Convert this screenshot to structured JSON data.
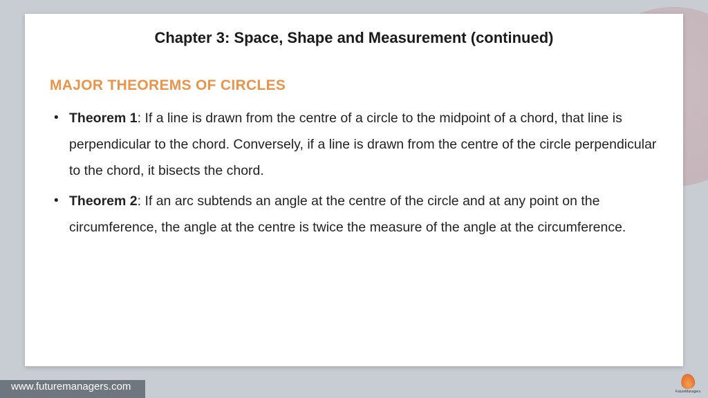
{
  "colors": {
    "page_bg": "#c8cdd3",
    "card_bg": "#ffffff",
    "title_text": "#1a1a1a",
    "heading_text": "#e8944a",
    "body_text": "#222222",
    "footer_bar": "#5e6770",
    "footer_text": "#ffffff",
    "bg_circle": "#b94e4e"
  },
  "typography": {
    "title_fontsize": 22,
    "heading_fontsize": 21,
    "body_fontsize": 19.5,
    "body_lineheight": 1.95,
    "footer_fontsize": 15
  },
  "chapter_title": "Chapter 3: Space, Shape and Measurement (continued)",
  "section_heading": "MAJOR THEOREMS OF CIRCLES",
  "theorems": [
    {
      "label": "Theorem 1",
      "text": ": If a line is drawn from the centre of a circle to the midpoint of a chord, that line is perpendicular to the chord. Conversely, if a line is drawn from the centre of the circle perpendicular to the chord, it bisects the chord."
    },
    {
      "label": "Theorem 2",
      "text": ": If an arc subtends an angle at the centre of the circle and at any point on the circumference, the angle at the centre is twice the measure of the angle at the circumference."
    }
  ],
  "footer": {
    "url": "www.futuremanagers.com",
    "logo_label": "FutureManagers"
  }
}
